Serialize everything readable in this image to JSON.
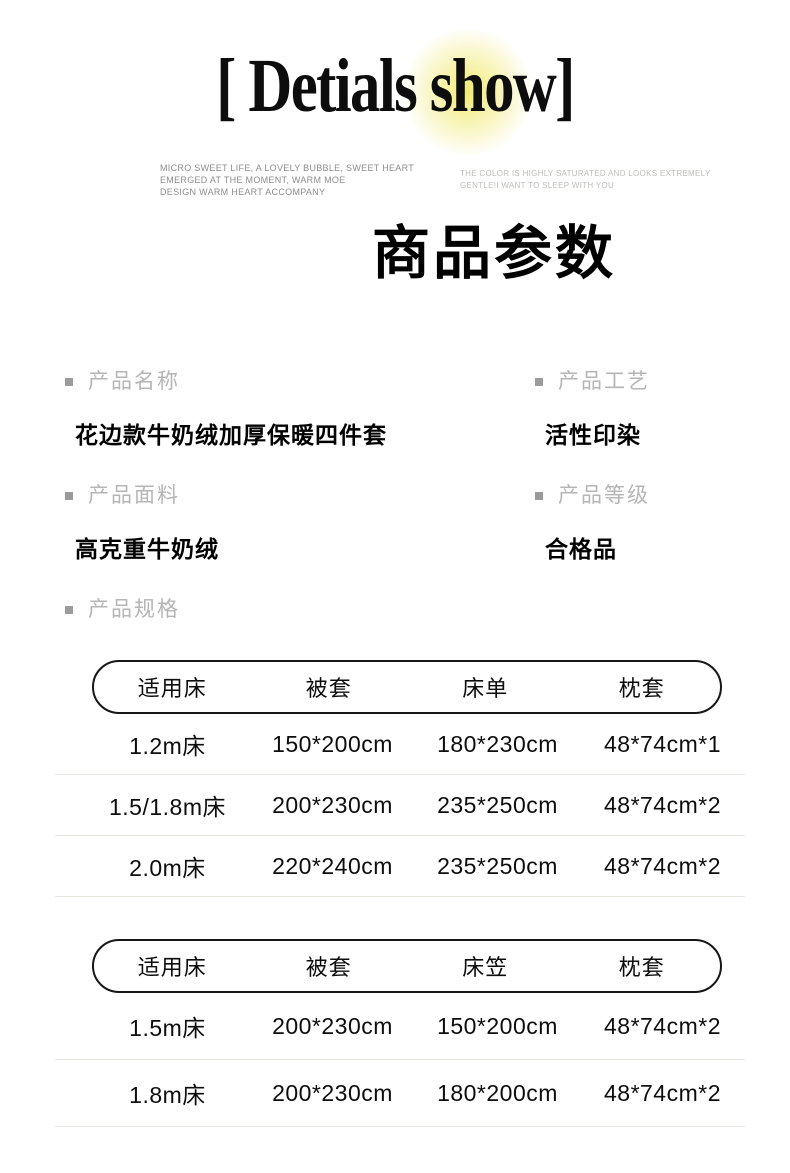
{
  "header": {
    "title": "[ Detials show]",
    "left_tagline": [
      "MICRO SWEET LIFE, A LOVELY BUBBLE, SWEET HEART",
      "EMERGED AT THE MOMENT, WARM MOE",
      "DESIGN WARM HEART ACCOMPANY"
    ],
    "right_tagline": [
      "THE COLOR IS HIGHLY SATURATED AND LOOKS EXTREMELY",
      "GENTLE!I WANT TO SLEEP WITH YOU"
    ],
    "section_title": "商品参数"
  },
  "specs": {
    "items": [
      {
        "label": "产品名称",
        "value": "花边款牛奶绒加厚保暖四件套"
      },
      {
        "label": "产品工艺",
        "value": "活性印染"
      },
      {
        "label": "产品面料",
        "value": "高克重牛奶绒"
      },
      {
        "label": "产品等级",
        "value": "合格品"
      }
    ],
    "section_label": "产品规格"
  },
  "tables": [
    {
      "headers": [
        "适用床",
        "被套",
        "床单",
        "枕套"
      ],
      "rows": [
        [
          "1.2m床",
          "150*200cm",
          "180*230cm",
          "48*74cm*1"
        ],
        [
          "1.5/1.8m床",
          "200*230cm",
          "235*250cm",
          "48*74cm*2"
        ],
        [
          "2.0m床",
          "220*240cm",
          "235*250cm",
          "48*74cm*2"
        ]
      ]
    },
    {
      "headers": [
        "适用床",
        "被套",
        "床笠",
        "枕套"
      ],
      "rows": [
        [
          "1.5m床",
          "200*230cm",
          "150*200cm",
          "48*74cm*2"
        ],
        [
          "1.8m床",
          "200*230cm",
          "180*200cm",
          "48*74cm*2"
        ]
      ]
    }
  ],
  "colors": {
    "highlight": "#f0ea6e",
    "label_gray": "#b5b5b5",
    "divider": "#e7e7e1"
  }
}
